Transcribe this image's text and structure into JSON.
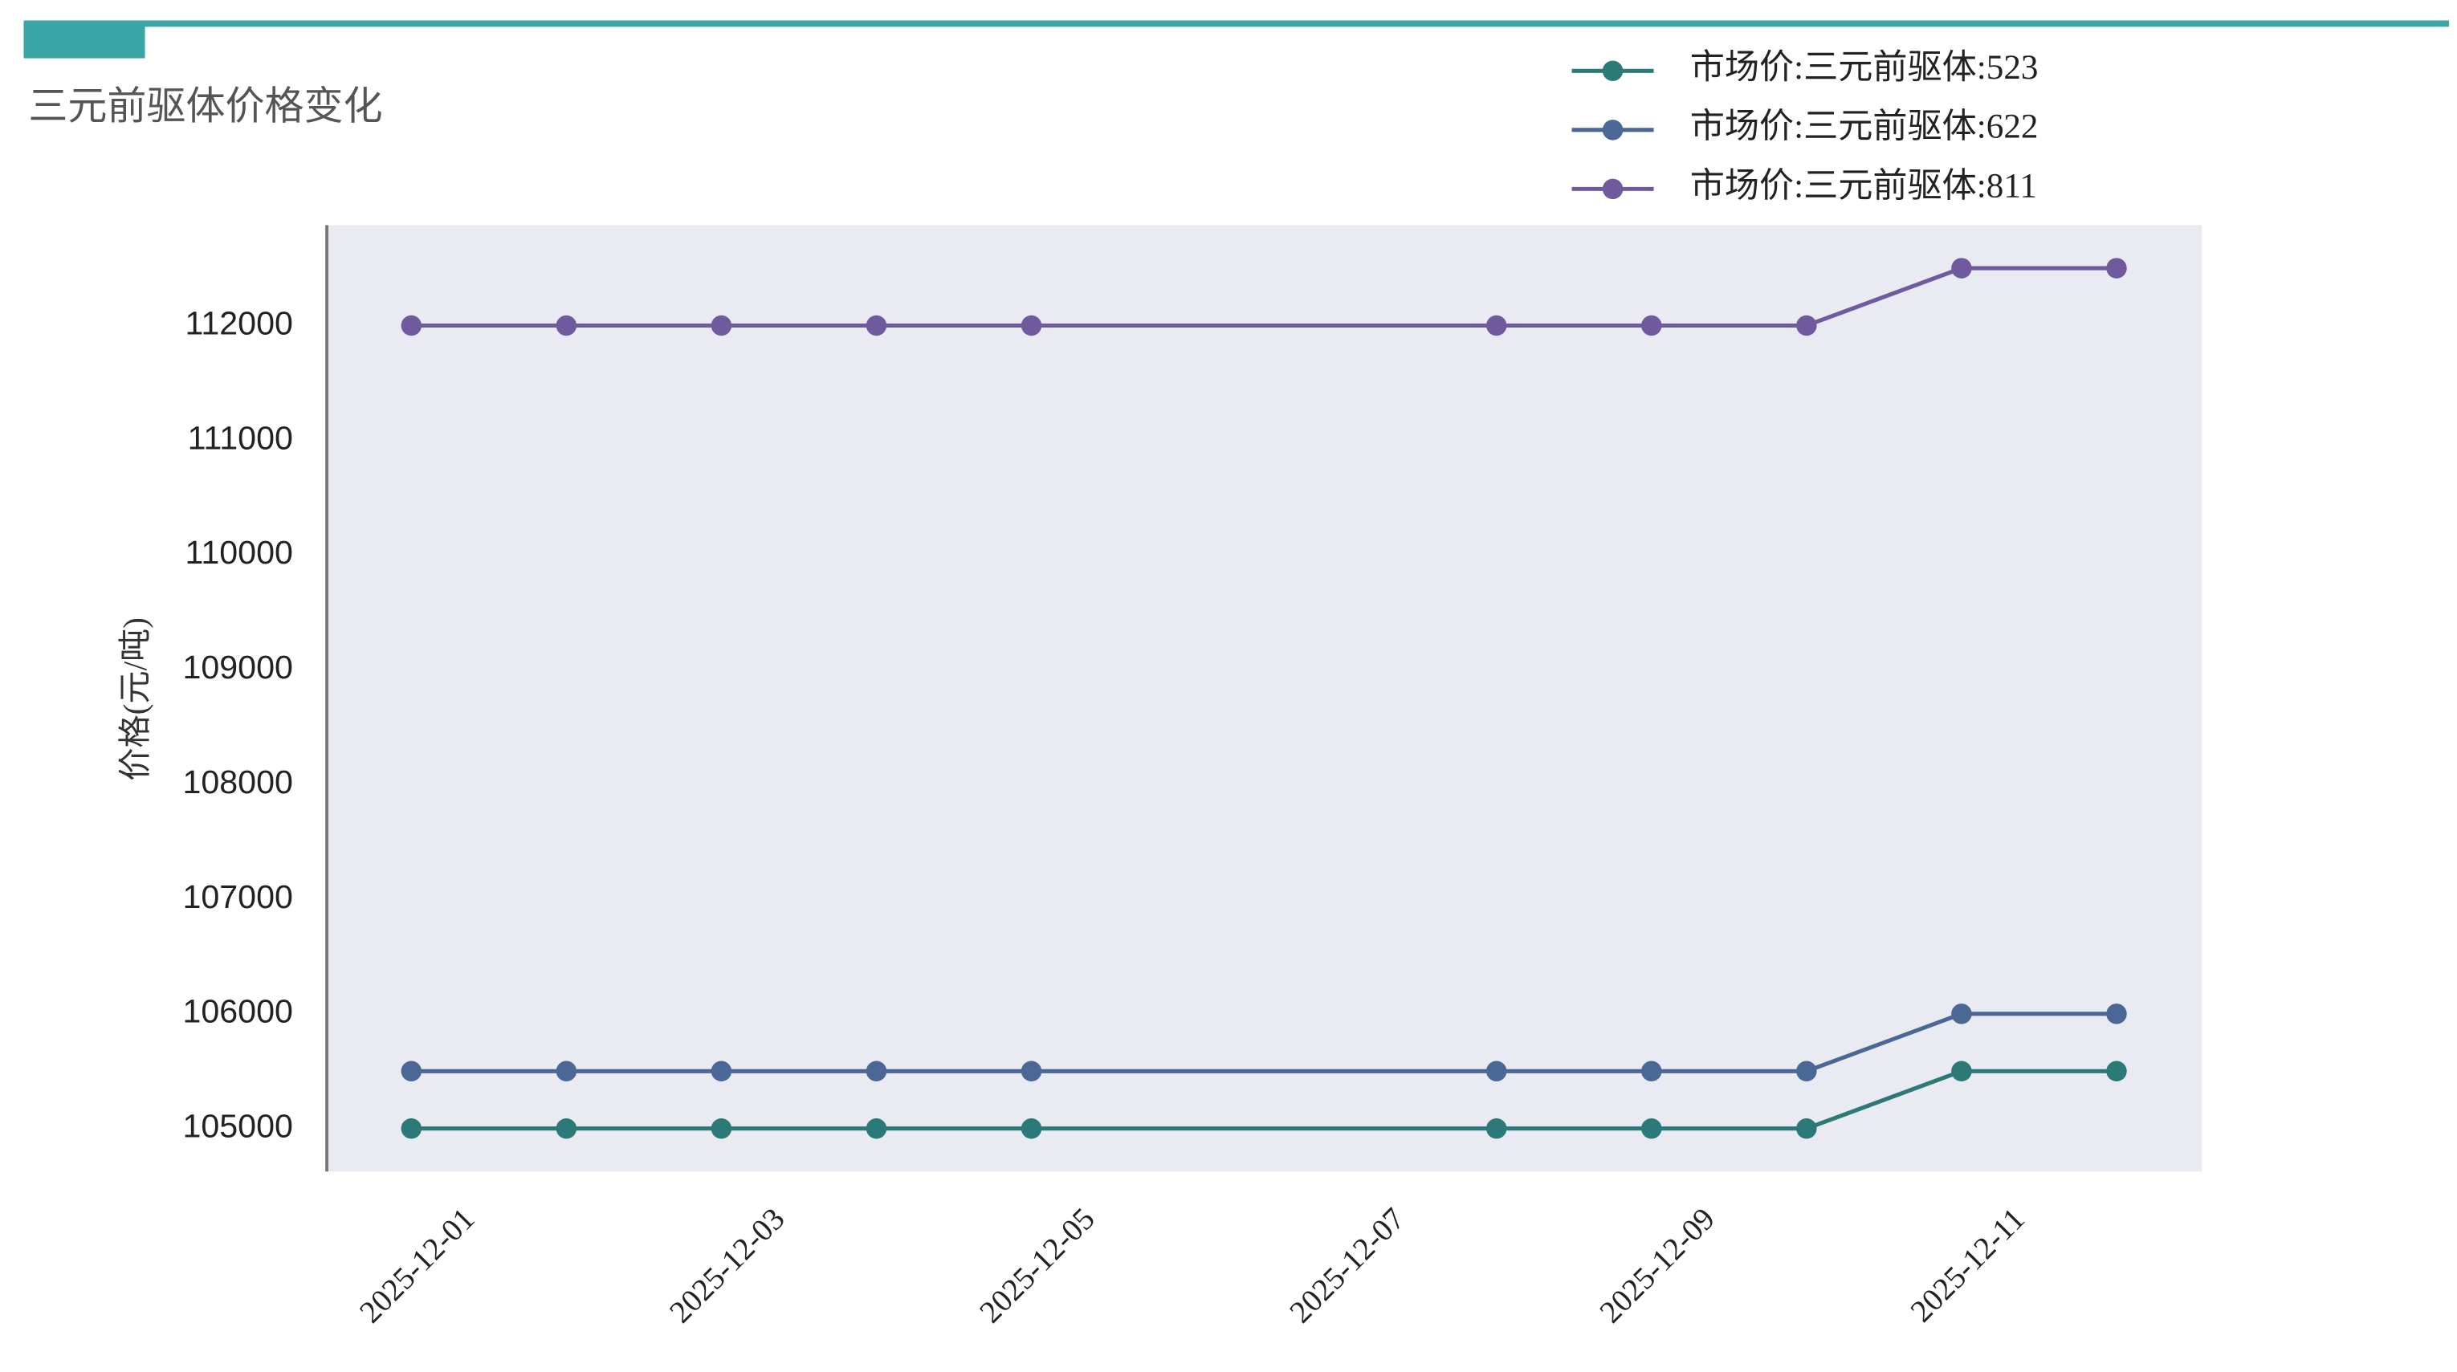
{
  "chart_data": {
    "type": "line",
    "title": "三元前驱体价格变化",
    "y_label": "价格(元/吨)",
    "x": [
      "2025-12-01",
      "2025-12-02",
      "2025-12-03",
      "2025-12-04",
      "2025-12-05",
      "2025-12-08",
      "2025-12-09",
      "2025-12-10",
      "2025-12-11",
      "2025-12-12"
    ],
    "xlim": [
      "2025-11-30T10:48",
      "2025-12-12T13:12"
    ],
    "xticks": [
      "2025-12-01",
      "2025-12-03",
      "2025-12-05",
      "2025-12-07",
      "2025-12-09",
      "2025-12-11"
    ],
    "ylim": [
      104625,
      112875
    ],
    "yticks": [
      105000,
      106000,
      107000,
      108000,
      109000,
      110000,
      111000,
      112000
    ],
    "grid": false,
    "legend": "top-right",
    "series": [
      {
        "name": "市场价:三元前驱体:523",
        "color": "#2b7a78",
        "values": [
          105000,
          105000,
          105000,
          105000,
          105000,
          105000,
          105000,
          105000,
          105500,
          105500
        ]
      },
      {
        "name": "市场价:三元前驱体:622",
        "color": "#4a6795",
        "values": [
          105500,
          105500,
          105500,
          105500,
          105500,
          105500,
          105500,
          105500,
          106000,
          106000
        ]
      },
      {
        "name": "市场价:三元前驱体:811",
        "color": "#6f5a9e",
        "values": [
          112000,
          112000,
          112000,
          112000,
          112000,
          112000,
          112000,
          112000,
          112500,
          112500
        ]
      }
    ]
  }
}
